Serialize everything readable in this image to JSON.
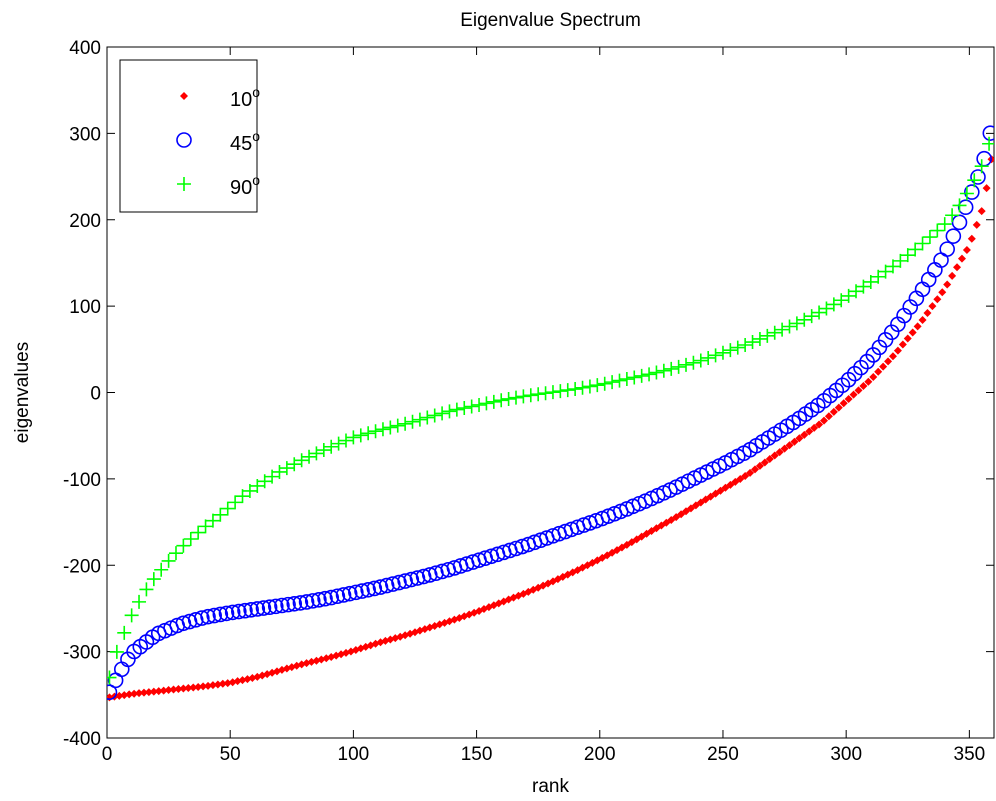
{
  "chart_data": {
    "type": "scatter",
    "title": "Eigenvalue Spectrum",
    "xlabel": "rank",
    "ylabel": "eigenvalues",
    "xlim": [
      0,
      360
    ],
    "ylim": [
      -400,
      400
    ],
    "xticks": [
      0,
      50,
      100,
      150,
      200,
      250,
      300,
      350
    ],
    "yticks": [
      -400,
      -300,
      -200,
      -100,
      0,
      100,
      200,
      300,
      400
    ],
    "xtick_labels": [
      "0",
      "50",
      "100",
      "150",
      "200",
      "250",
      "300",
      "350"
    ],
    "ytick_labels": [
      "-400",
      "-300",
      "-200",
      "-100",
      "0",
      "100",
      "200",
      "300",
      "400"
    ],
    "grid": false,
    "legend_position": "top-left",
    "series": [
      {
        "name": "10",
        "name_superscript": "o",
        "marker": "dot",
        "color": "#ff0000",
        "x": [
          1,
          10,
          20,
          30,
          40,
          50,
          60,
          70,
          80,
          90,
          100,
          110,
          120,
          130,
          140,
          150,
          160,
          170,
          180,
          190,
          200,
          210,
          220,
          230,
          240,
          250,
          260,
          270,
          280,
          290,
          300,
          310,
          320,
          330,
          340,
          350,
          355,
          358,
          360
        ],
        "y": [
          -353,
          -349,
          -346,
          -343,
          -340,
          -336,
          -330,
          -322,
          -314,
          -307,
          -299,
          -290,
          -282,
          -273,
          -264,
          -254,
          -243,
          -232,
          -220,
          -207,
          -193,
          -178,
          -162,
          -146,
          -129,
          -112,
          -95,
          -75,
          -55,
          -35,
          -10,
          15,
          45,
          80,
          120,
          170,
          210,
          250,
          290
        ]
      },
      {
        "name": "45",
        "name_superscript": "o",
        "marker": "circle",
        "color": "#0000ff",
        "x": [
          1,
          5,
          10,
          20,
          30,
          40,
          50,
          60,
          70,
          80,
          90,
          100,
          110,
          120,
          130,
          140,
          150,
          160,
          170,
          180,
          190,
          200,
          210,
          220,
          230,
          240,
          250,
          260,
          270,
          280,
          290,
          300,
          310,
          320,
          330,
          340,
          345,
          350,
          355,
          358,
          360
        ],
        "y": [
          -347,
          -325,
          -302,
          -280,
          -268,
          -260,
          -255,
          -251,
          -247,
          -243,
          -238,
          -232,
          -226,
          -219,
          -212,
          -204,
          -195,
          -186,
          -177,
          -167,
          -157,
          -147,
          -136,
          -124,
          -111,
          -97,
          -83,
          -68,
          -50,
          -32,
          -12,
          12,
          40,
          75,
          115,
          160,
          190,
          225,
          260,
          292,
          325
        ]
      },
      {
        "name": "90",
        "name_superscript": "o",
        "marker": "plus",
        "color": "#00ff00",
        "x": [
          1,
          3,
          6,
          10,
          15,
          20,
          25,
          30,
          35,
          40,
          45,
          50,
          55,
          60,
          70,
          80,
          90,
          100,
          110,
          120,
          130,
          140,
          150,
          160,
          170,
          180,
          190,
          200,
          210,
          220,
          230,
          240,
          250,
          260,
          270,
          280,
          290,
          300,
          310,
          320,
          330,
          340,
          345,
          350,
          355,
          358,
          360
        ],
        "y": [
          -330,
          -308,
          -285,
          -258,
          -232,
          -212,
          -195,
          -180,
          -167,
          -155,
          -144,
          -132,
          -120,
          -110,
          -92,
          -77,
          -64,
          -52,
          -44,
          -37,
          -29,
          -21,
          -15,
          -9,
          -4,
          0,
          4,
          9,
          15,
          21,
          28,
          36,
          46,
          56,
          68,
          80,
          94,
          110,
          128,
          148,
          170,
          195,
          212,
          235,
          262,
          288,
          315
        ]
      }
    ]
  }
}
